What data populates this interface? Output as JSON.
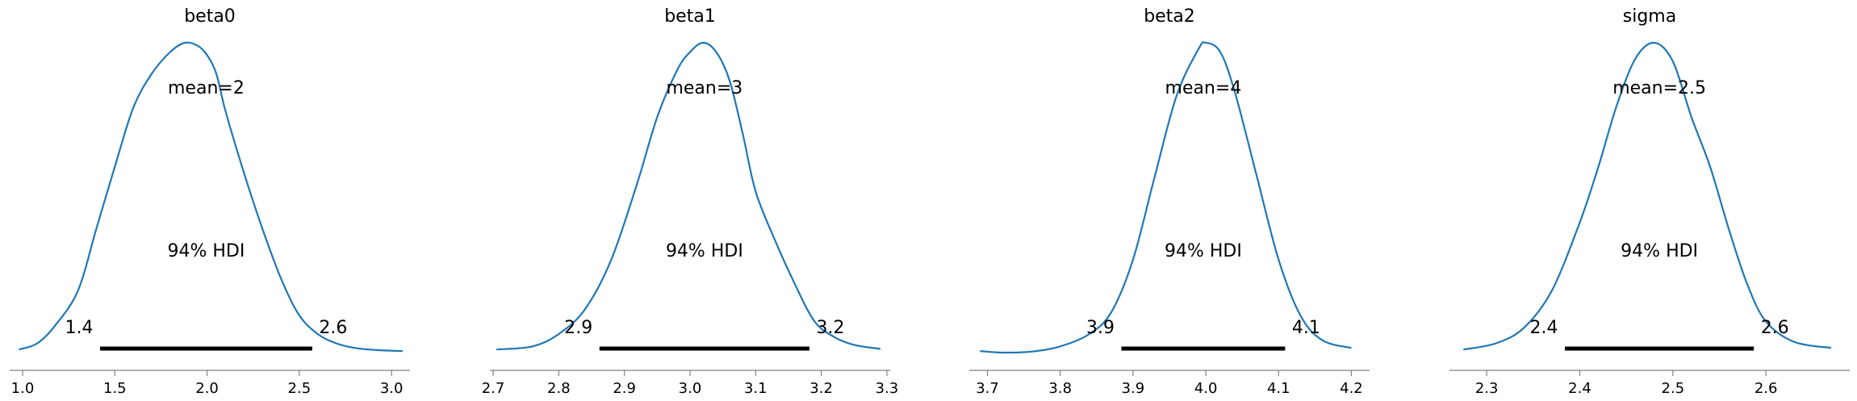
{
  "colors": {
    "line": "#1f77b4",
    "hdi": "#000000",
    "axis": "#808080"
  },
  "chart_data": [
    {
      "type": "line",
      "title": "beta0",
      "xlim": [
        0.93,
        3.1
      ],
      "xticks": [
        1.0,
        1.5,
        2.0,
        2.5,
        3.0
      ],
      "xtick_labels": [
        "1.0",
        "1.5",
        "2.0",
        "2.5",
        "3.0"
      ],
      "mean_label": "mean=2",
      "hdi_label": "94% HDI",
      "hdi": [
        1.42,
        2.57
      ],
      "hdi_low_label": "1.4",
      "hdi_high_label": "2.6",
      "series": [
        {
          "x": [
            0.98,
            1.08,
            1.18,
            1.3,
            1.4,
            1.5,
            1.6,
            1.7,
            1.8,
            1.88,
            1.95,
            2.0,
            2.05,
            2.1,
            2.2,
            2.3,
            2.4,
            2.5,
            2.6,
            2.7,
            2.8,
            2.92,
            3.06
          ],
          "y": [
            0.01,
            0.03,
            0.09,
            0.2,
            0.4,
            0.6,
            0.79,
            0.9,
            0.97,
            1.0,
            0.99,
            0.96,
            0.9,
            0.78,
            0.58,
            0.4,
            0.24,
            0.12,
            0.06,
            0.03,
            0.015,
            0.008,
            0.005
          ]
        }
      ]
    },
    {
      "type": "line",
      "title": "beta1",
      "xlim": [
        2.695,
        3.305
      ],
      "xticks": [
        2.7,
        2.8,
        2.9,
        3.0,
        3.1,
        3.2,
        3.3
      ],
      "xtick_labels": [
        "2.7",
        "2.8",
        "2.9",
        "3.0",
        "3.1",
        "3.2",
        "3.3"
      ],
      "mean_label": "mean=3",
      "hdi_label": "94% HDI",
      "hdi": [
        2.862,
        3.182
      ],
      "hdi_low_label": "2.9",
      "hdi_high_label": "3.2",
      "series": [
        {
          "x": [
            2.705,
            2.76,
            2.8,
            2.84,
            2.88,
            2.92,
            2.95,
            2.98,
            3.0,
            3.02,
            3.04,
            3.06,
            3.08,
            3.1,
            3.13,
            3.16,
            3.19,
            3.22,
            3.25,
            3.29
          ],
          "y": [
            0.01,
            0.02,
            0.06,
            0.14,
            0.3,
            0.55,
            0.76,
            0.91,
            0.97,
            1.0,
            0.97,
            0.88,
            0.71,
            0.52,
            0.36,
            0.22,
            0.1,
            0.05,
            0.025,
            0.012
          ]
        }
      ]
    },
    {
      "type": "line",
      "title": "beta2",
      "xlim": [
        3.675,
        4.225
      ],
      "xticks": [
        3.7,
        3.8,
        3.9,
        4.0,
        4.1,
        4.2
      ],
      "xtick_labels": [
        "3.7",
        "3.8",
        "3.9",
        "4.0",
        "4.1",
        "4.2"
      ],
      "mean_label": "mean=4",
      "hdi_label": "94% HDI",
      "hdi": [
        3.884,
        4.109
      ],
      "hdi_low_label": "3.9",
      "hdi_high_label": "4.1",
      "series": [
        {
          "x": [
            3.69,
            3.72,
            3.76,
            3.8,
            3.84,
            3.87,
            3.9,
            3.93,
            3.96,
            3.99,
            4.0,
            4.02,
            4.04,
            4.07,
            4.1,
            4.13,
            4.16,
            4.2
          ],
          "y": [
            0.005,
            0.0,
            0.003,
            0.02,
            0.06,
            0.13,
            0.3,
            0.57,
            0.83,
            0.98,
            1.0,
            0.97,
            0.84,
            0.57,
            0.3,
            0.12,
            0.04,
            0.015
          ]
        }
      ]
    },
    {
      "type": "line",
      "title": "sigma",
      "xlim": [
        2.26,
        2.69
      ],
      "xticks": [
        2.3,
        2.4,
        2.5,
        2.6
      ],
      "xtick_labels": [
        "2.3",
        "2.4",
        "2.5",
        "2.6"
      ],
      "mean_label": "mean=2.5",
      "hdi_label": "94% HDI",
      "hdi": [
        2.384,
        2.587
      ],
      "hdi_low_label": "2.4",
      "hdi_high_label": "2.6",
      "series": [
        {
          "x": [
            2.275,
            2.31,
            2.34,
            2.37,
            2.4,
            2.42,
            2.44,
            2.46,
            2.48,
            2.5,
            2.52,
            2.54,
            2.56,
            2.58,
            2.6,
            2.63,
            2.67
          ],
          "y": [
            0.01,
            0.03,
            0.08,
            0.2,
            0.42,
            0.6,
            0.8,
            0.95,
            1.0,
            0.94,
            0.76,
            0.6,
            0.4,
            0.22,
            0.1,
            0.035,
            0.015
          ]
        }
      ]
    }
  ]
}
